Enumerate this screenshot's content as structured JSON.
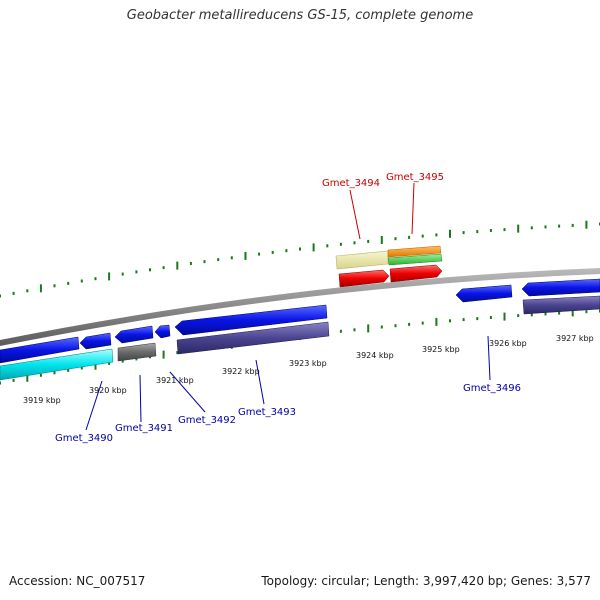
{
  "title": "Geobacter metallireducens GS-15, complete genome",
  "footer": {
    "accession": "Accession: NC_007517",
    "summary": "Topology: circular; Length: 3,997,420 bp; Genes: 3,577"
  },
  "kbp_labels": [
    "3919 kbp",
    "3920 kbp",
    "3921 kbp",
    "3922 kbp",
    "3923 kbp",
    "3924 kbp",
    "3925 kbp",
    "3926 kbp",
    "3927 kbp"
  ],
  "gene_labels": [
    {
      "name": "Gmet_3490",
      "color": "#0000aa"
    },
    {
      "name": "Gmet_3491",
      "color": "#0000aa"
    },
    {
      "name": "Gmet_3492",
      "color": "#0000aa"
    },
    {
      "name": "Gmet_3493",
      "color": "#0000aa"
    },
    {
      "name": "Gmet_3494",
      "color": "#cc0000"
    },
    {
      "name": "Gmet_3495",
      "color": "#cc0000"
    },
    {
      "name": "Gmet_3496",
      "color": "#0000aa"
    }
  ],
  "colors": {
    "backbone": "#888888",
    "tick": "#1a7a1a",
    "gene_forward": "#0a14e6",
    "gene_reverse": "#0a14e6",
    "cds_purple": "#4b4490",
    "cyan": "#00e5ee",
    "gray": "#6a6a6a",
    "red": "#ee0000",
    "orange": "#f08c10",
    "green": "#44cc44",
    "khaki": "#ece9a6"
  }
}
